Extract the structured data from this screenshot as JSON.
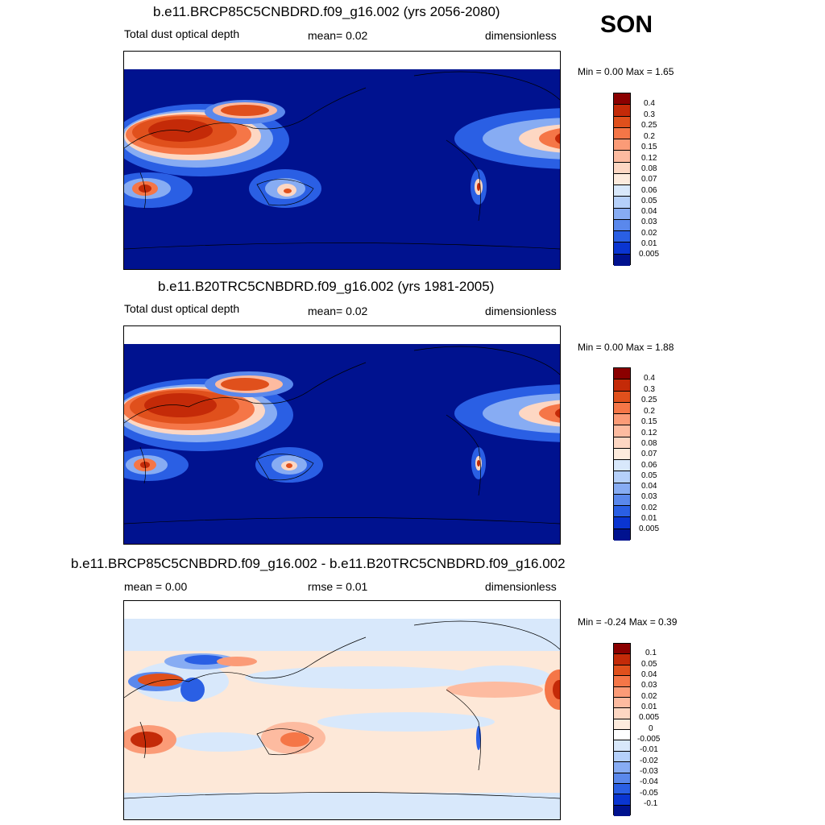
{
  "season": "SON",
  "panels": [
    {
      "title": "b.e11.BRCP85C5CNBDRD.f09_g16.002 (yrs 2056-2080)",
      "left_label": "Total dust optical depth",
      "center_label": "mean=   0.02",
      "right_label": "dimensionless",
      "minmax": "Min =    0.00 Max =    1.65",
      "colorbar_labels": [
        "0.4",
        "0.3",
        "0.25",
        "0.2",
        "0.15",
        "0.12",
        "0.08",
        "0.07",
        "0.06",
        "0.05",
        "0.04",
        "0.03",
        "0.02",
        "0.01",
        "0.005"
      ],
      "colorbar_colors": [
        "#8b0000",
        "#c42a08",
        "#e0501c",
        "#f57647",
        "#fb9b77",
        "#fdbba0",
        "#fdd7c3",
        "#fdebdd",
        "#d8e8fb",
        "#b5d0fa",
        "#87acf3",
        "#5a88ec",
        "#2a5fe4",
        "#0a35d1",
        "#00128f"
      ]
    },
    {
      "title": "b.e11.B20TRC5CNBDRD.f09_g16.002 (yrs 1981-2005)",
      "left_label": "Total dust optical depth",
      "center_label": "mean=   0.02",
      "right_label": "dimensionless",
      "minmax": "Min =    0.00 Max =    1.88",
      "colorbar_labels": [
        "0.4",
        "0.3",
        "0.25",
        "0.2",
        "0.15",
        "0.12",
        "0.08",
        "0.07",
        "0.06",
        "0.05",
        "0.04",
        "0.03",
        "0.02",
        "0.01",
        "0.005"
      ],
      "colorbar_colors": [
        "#8b0000",
        "#c42a08",
        "#e0501c",
        "#f57647",
        "#fb9b77",
        "#fdbba0",
        "#fdd7c3",
        "#fdebdd",
        "#d8e8fb",
        "#b5d0fa",
        "#87acf3",
        "#5a88ec",
        "#2a5fe4",
        "#0a35d1",
        "#00128f"
      ]
    },
    {
      "title": "b.e11.BRCP85C5CNBDRD.f09_g16.002 - b.e11.B20TRC5CNBDRD.f09_g16.002",
      "left_label": "mean =    0.00",
      "center_label": "rmse =    0.01",
      "right_label": "dimensionless",
      "minmax": "Min =  -0.24 Max =    0.39",
      "colorbar_labels": [
        "0.1",
        "0.05",
        "0.04",
        "0.03",
        "0.02",
        "0.01",
        "0.005",
        "0",
        "-0.005",
        "-0.01",
        "-0.02",
        "-0.03",
        "-0.04",
        "-0.05",
        "-0.1"
      ],
      "colorbar_colors": [
        "#8b0000",
        "#c42a08",
        "#e0501c",
        "#f57647",
        "#fb9b77",
        "#fdbba0",
        "#fdd7c3",
        "#fdebdd",
        "#ffffff",
        "#d8e8fb",
        "#b5d0fa",
        "#87acf3",
        "#5a88ec",
        "#2a5fe4",
        "#0a35d1",
        "#00128f"
      ]
    }
  ],
  "colors": {
    "field_background": "#00128f",
    "diff_background": "#fde8d8",
    "diff_negative": "#d8e8fb"
  }
}
